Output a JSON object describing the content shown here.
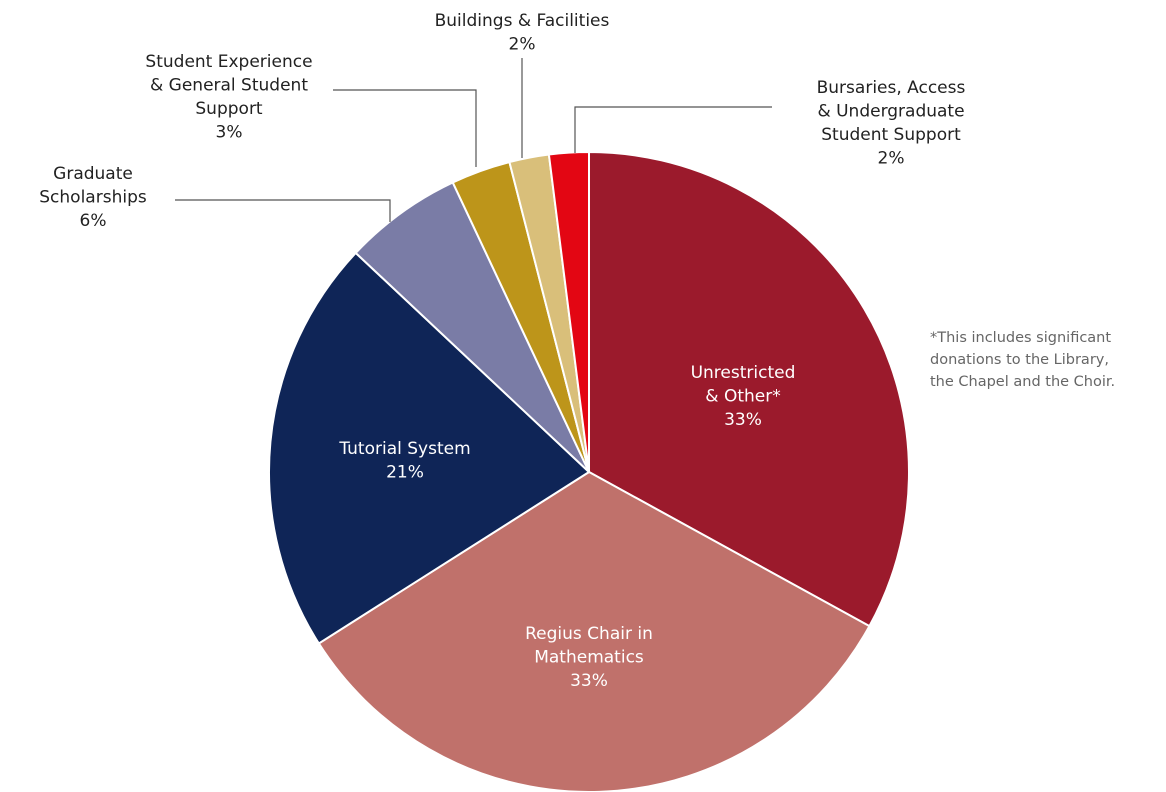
{
  "chart_data": {
    "type": "pie",
    "categories": [
      "Unrestricted\n& Other*",
      "Regius Chair in\nMathematics",
      "Tutorial System",
      "Graduate\nScholarships",
      "Student Experience\n& General Student\nSupport",
      "Buildings & Facilities",
      "Bursaries, Access\n& Undergraduate\nStudent Support"
    ],
    "values": [
      33,
      33,
      21,
      6,
      3,
      2,
      2
    ],
    "value_labels": [
      "33%",
      "33%",
      "21%",
      "6%",
      "3%",
      "2%",
      "2%"
    ],
    "colors": [
      "#9b1a2c",
      "#c0716b",
      "#0f2557",
      "#7a7ca6",
      "#bd951a",
      "#d9bf7a",
      "#e30613"
    ],
    "annotation": "*This includes significant\ndonations to the Library,\nthe Chapel and the Choir."
  }
}
